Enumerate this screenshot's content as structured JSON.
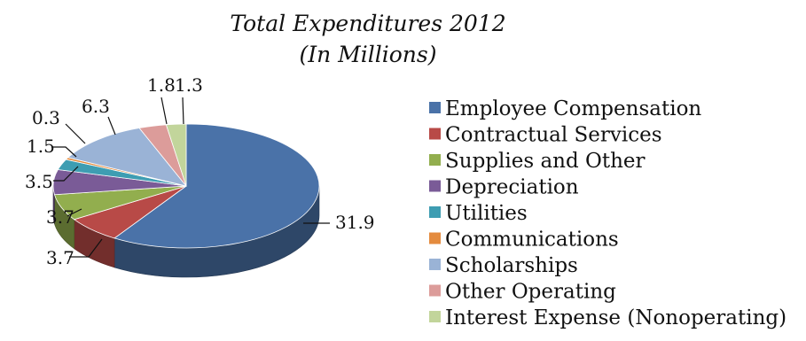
{
  "chart_data": {
    "type": "pie",
    "title": "Total Expenditures 2012",
    "subtitle": "(In Millions)",
    "legend_position": "right",
    "categories": [
      "Employee Compensation",
      "Contractual Services",
      "Supplies and Other",
      "Depreciation",
      "Utilities",
      "Communications",
      "Scholarships",
      "Other Operating",
      "Interest Expense (Nonoperating)"
    ],
    "values": [
      31.9,
      3.7,
      3.7,
      3.5,
      1.5,
      0.3,
      6.3,
      1.8,
      1.3
    ],
    "data_labels": [
      "31.9",
      "3.7",
      "3.7",
      "3.5",
      "1.5",
      "0.3",
      "6.3",
      "1.8",
      "1.3"
    ],
    "colors": [
      "#4A72A8",
      "#B84A47",
      "#92AE4E",
      "#7A5B97",
      "#3E9DB2",
      "#E48B3E",
      "#9AB3D6",
      "#DC9C9A",
      "#C2D59B"
    ],
    "style": "3D"
  }
}
